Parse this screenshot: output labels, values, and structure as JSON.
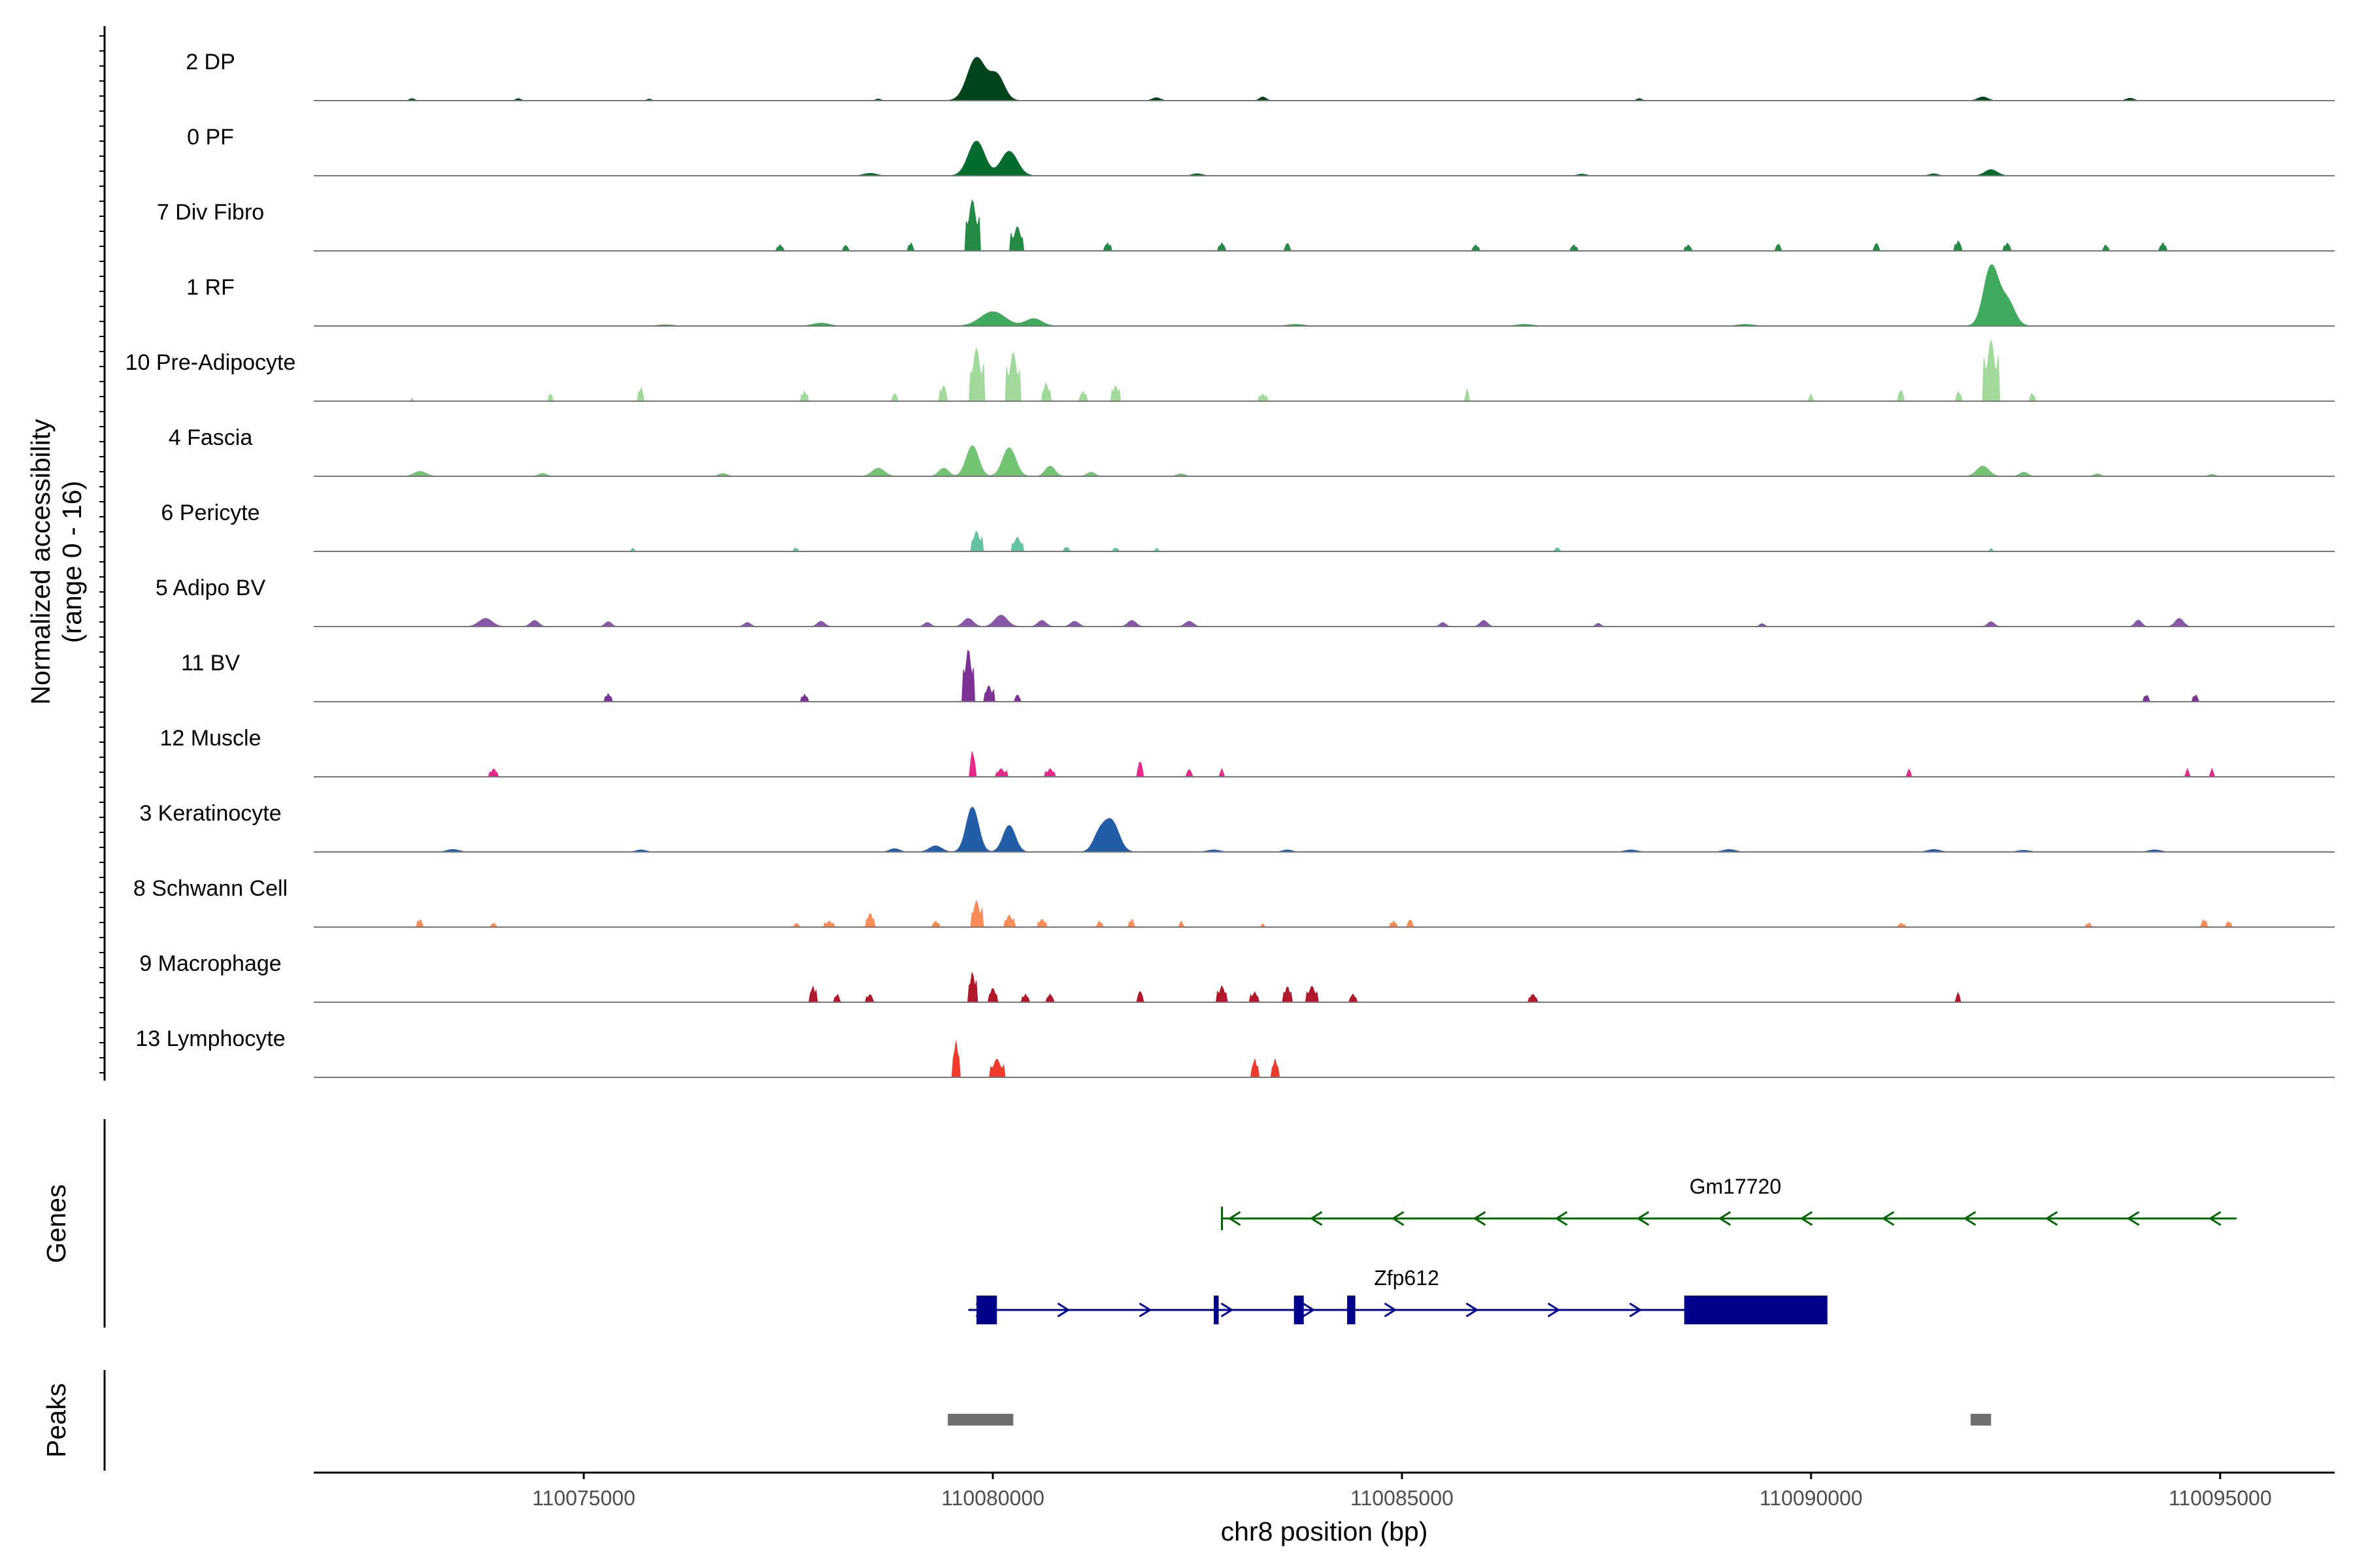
{
  "chart_data": {
    "type": "area",
    "title": "",
    "xlabel": "chr8 position (bp)",
    "ylabel": "Normalized accessibility",
    "ylabel_sub": "(range 0 - 16)",
    "xlim": [
      110071700,
      110096400
    ],
    "ylim": [
      0,
      16
    ],
    "xticks": [
      110075000,
      110080000,
      110085000,
      110090000,
      110095000
    ],
    "xtick_labels": [
      "110075000",
      "110080000",
      "110085000",
      "110090000",
      "110095000"
    ],
    "tracks": [
      {
        "name": "2 DP",
        "color": "#00441b",
        "style": "smooth",
        "peaks": [
          [
            110079800,
            10.5,
            220
          ],
          [
            110080050,
            6.0,
            180
          ],
          [
            110072900,
            0.5,
            60
          ],
          [
            110074200,
            0.5,
            60
          ],
          [
            110075800,
            0.4,
            50
          ],
          [
            110078600,
            0.4,
            60
          ],
          [
            110082000,
            0.7,
            100
          ],
          [
            110083300,
            0.9,
            80
          ],
          [
            110087900,
            0.5,
            60
          ],
          [
            110092100,
            0.9,
            120
          ],
          [
            110093900,
            0.6,
            90
          ]
        ]
      },
      {
        "name": "0 PF",
        "color": "#006d2c",
        "style": "smooth",
        "peaks": [
          [
            110079800,
            8.5,
            200
          ],
          [
            110080200,
            6.0,
            200
          ],
          [
            110078500,
            0.6,
            150
          ],
          [
            110082500,
            0.5,
            120
          ],
          [
            110087200,
            0.4,
            100
          ],
          [
            110091500,
            0.5,
            100
          ],
          [
            110092200,
            1.5,
            150
          ]
        ]
      },
      {
        "name": "7 Div Fibro",
        "color": "#238b45",
        "style": "blocky",
        "peaks": [
          [
            110079750,
            12.5,
            180
          ],
          [
            110080300,
            6.0,
            160
          ],
          [
            110077400,
            1.5,
            90
          ],
          [
            110078200,
            1.5,
            70
          ],
          [
            110079000,
            2.0,
            70
          ],
          [
            110081400,
            2.0,
            80
          ],
          [
            110082800,
            2.0,
            90
          ],
          [
            110083600,
            2.0,
            80
          ],
          [
            110085900,
            1.5,
            90
          ],
          [
            110087100,
            1.5,
            90
          ],
          [
            110088500,
            1.5,
            90
          ],
          [
            110089600,
            1.8,
            80
          ],
          [
            110090800,
            2.0,
            80
          ],
          [
            110091800,
            2.5,
            90
          ],
          [
            110092400,
            2.0,
            90
          ],
          [
            110093600,
            1.5,
            80
          ],
          [
            110094300,
            2.0,
            90
          ]
        ]
      },
      {
        "name": "1 RF",
        "color": "#41ab5d",
        "style": "smooth",
        "peaks": [
          [
            110092200,
            14.5,
            180
          ],
          [
            110092400,
            6.0,
            180
          ],
          [
            110080000,
            3.5,
            300
          ],
          [
            110080500,
            1.8,
            200
          ],
          [
            110077900,
            0.7,
            200
          ],
          [
            110083700,
            0.4,
            200
          ],
          [
            110086500,
            0.4,
            200
          ],
          [
            110089200,
            0.4,
            200
          ],
          [
            110076000,
            0.3,
            200
          ]
        ]
      },
      {
        "name": "10 Pre-Adipocyte",
        "color": "#a1d99b",
        "style": "blocky",
        "peaks": [
          [
            110079800,
            13.0,
            180
          ],
          [
            110080250,
            12.0,
            170
          ],
          [
            110079400,
            4.0,
            90
          ],
          [
            110080650,
            4.5,
            110
          ],
          [
            110081100,
            2.5,
            80
          ],
          [
            110081500,
            4.0,
            90
          ],
          [
            110083300,
            1.8,
            90
          ],
          [
            110074600,
            2.0,
            50
          ],
          [
            110075700,
            3.5,
            70
          ],
          [
            110077700,
            2.5,
            80
          ],
          [
            110078800,
            2.0,
            80
          ],
          [
            110085800,
            3.0,
            60
          ],
          [
            110090000,
            1.8,
            60
          ],
          [
            110091100,
            3.0,
            70
          ],
          [
            110091800,
            2.5,
            70
          ],
          [
            110092200,
            15.0,
            180
          ],
          [
            110092700,
            2.0,
            70
          ],
          [
            110072900,
            0.8,
            30
          ]
        ]
      },
      {
        "name": "4 Fascia",
        "color": "#74c476",
        "style": "smooth",
        "peaks": [
          [
            110079750,
            7.5,
            150
          ],
          [
            110080200,
            7.0,
            160
          ],
          [
            110079400,
            2.0,
            120
          ],
          [
            110080700,
            2.5,
            120
          ],
          [
            110078600,
            2.0,
            150
          ],
          [
            110073000,
            1.2,
            150
          ],
          [
            110074500,
            0.7,
            100
          ],
          [
            110076700,
            0.7,
            100
          ],
          [
            110081200,
            1.0,
            100
          ],
          [
            110082300,
            0.6,
            100
          ],
          [
            110092100,
            2.5,
            150
          ],
          [
            110092600,
            1.0,
            100
          ],
          [
            110093500,
            0.6,
            80
          ],
          [
            110094900,
            0.5,
            80
          ]
        ]
      },
      {
        "name": "6 Pericyte",
        "color": "#66c2a4",
        "style": "blocky",
        "peaks": [
          [
            110079800,
            5.0,
            140
          ],
          [
            110080300,
            3.5,
            150
          ],
          [
            110075600,
            0.8,
            60
          ],
          [
            110077600,
            1.0,
            50
          ],
          [
            110080900,
            1.2,
            60
          ],
          [
            110081500,
            1.0,
            60
          ],
          [
            110082000,
            0.8,
            50
          ],
          [
            110086900,
            1.0,
            80
          ],
          [
            110092200,
            0.7,
            50
          ]
        ]
      },
      {
        "name": "5 Adipo BV",
        "color": "#8856a7",
        "style": "smooth",
        "peaks": [
          [
            110073800,
            2.0,
            160
          ],
          [
            110074400,
            1.5,
            100
          ],
          [
            110075300,
            1.2,
            80
          ],
          [
            110077000,
            1.0,
            80
          ],
          [
            110077900,
            1.3,
            90
          ],
          [
            110079200,
            1.0,
            80
          ],
          [
            110079700,
            2.0,
            120
          ],
          [
            110080100,
            2.8,
            150
          ],
          [
            110080600,
            1.5,
            100
          ],
          [
            110081000,
            1.3,
            100
          ],
          [
            110081700,
            1.5,
            100
          ],
          [
            110082400,
            1.3,
            100
          ],
          [
            110085500,
            1.0,
            70
          ],
          [
            110086000,
            1.5,
            90
          ],
          [
            110087400,
            0.8,
            60
          ],
          [
            110089400,
            0.7,
            60
          ],
          [
            110092200,
            1.2,
            80
          ],
          [
            110094000,
            1.6,
            80
          ],
          [
            110094500,
            2.0,
            100
          ]
        ]
      },
      {
        "name": "11 BV",
        "color": "#7b3294",
        "style": "blocky",
        "peaks": [
          [
            110079700,
            13.0,
            140
          ],
          [
            110079950,
            4.0,
            120
          ],
          [
            110080300,
            1.8,
            80
          ],
          [
            110075300,
            2.0,
            80
          ],
          [
            110077700,
            1.8,
            80
          ],
          [
            110094100,
            1.8,
            60
          ],
          [
            110094700,
            1.8,
            60
          ]
        ]
      },
      {
        "name": "12 Muscle",
        "color": "#e7298a",
        "style": "blocky",
        "peaks": [
          [
            110079750,
            6.5,
            80
          ],
          [
            110080100,
            2.0,
            140
          ],
          [
            110080700,
            2.0,
            120
          ],
          [
            110073900,
            2.0,
            110
          ],
          [
            110081800,
            4.0,
            80
          ],
          [
            110082400,
            2.0,
            70
          ],
          [
            110082800,
            2.0,
            60
          ],
          [
            110091200,
            2.0,
            60
          ],
          [
            110094600,
            2.0,
            60
          ],
          [
            110094900,
            2.0,
            60
          ]
        ]
      },
      {
        "name": "3 Keratinocyte",
        "color": "#225ea8",
        "style": "smooth",
        "peaks": [
          [
            110079750,
            11.0,
            150
          ],
          [
            110080200,
            6.5,
            150
          ],
          [
            110081450,
            7.5,
            180
          ],
          [
            110081300,
            4.0,
            150
          ],
          [
            110079300,
            1.5,
            150
          ],
          [
            110078800,
            0.8,
            120
          ],
          [
            110073400,
            0.6,
            150
          ],
          [
            110075700,
            0.5,
            120
          ],
          [
            110082700,
            0.5,
            150
          ],
          [
            110083600,
            0.5,
            120
          ],
          [
            110087800,
            0.5,
            150
          ],
          [
            110089000,
            0.6,
            150
          ],
          [
            110091500,
            0.6,
            150
          ],
          [
            110092600,
            0.4,
            150
          ],
          [
            110094200,
            0.5,
            150
          ]
        ]
      },
      {
        "name": "8 Schwann Cell",
        "color": "#fc8d59",
        "style": "blocky",
        "peaks": [
          [
            110079800,
            6.5,
            140
          ],
          [
            110080200,
            3.0,
            120
          ],
          [
            110080600,
            2.0,
            100
          ],
          [
            110078500,
            3.5,
            110
          ],
          [
            110078000,
            1.5,
            110
          ],
          [
            110077600,
            1.0,
            80
          ],
          [
            110079300,
            1.5,
            90
          ],
          [
            110081300,
            1.5,
            70
          ],
          [
            110081700,
            2.0,
            70
          ],
          [
            110082300,
            1.5,
            60
          ],
          [
            110083300,
            1.0,
            50
          ],
          [
            110084900,
            1.5,
            80
          ],
          [
            110085100,
            2.0,
            70
          ],
          [
            110073000,
            2.0,
            60
          ],
          [
            110073900,
            1.0,
            80
          ],
          [
            110091100,
            1.0,
            90
          ],
          [
            110093400,
            1.0,
            70
          ],
          [
            110094800,
            2.0,
            60
          ],
          [
            110095100,
            1.5,
            60
          ]
        ]
      },
      {
        "name": "9 Macrophage",
        "color": "#b2182b",
        "style": "blocky",
        "peaks": [
          [
            110079750,
            7.5,
            100
          ],
          [
            110080000,
            3.5,
            120
          ],
          [
            110080400,
            2.0,
            80
          ],
          [
            110080700,
            2.0,
            100
          ],
          [
            110077800,
            4.0,
            80
          ],
          [
            110078100,
            2.0,
            70
          ],
          [
            110078500,
            2.0,
            90
          ],
          [
            110081800,
            3.0,
            70
          ],
          [
            110082800,
            4.0,
            120
          ],
          [
            110083200,
            2.5,
            100
          ],
          [
            110083600,
            4.0,
            100
          ],
          [
            110083900,
            4.0,
            140
          ],
          [
            110084400,
            2.0,
            100
          ],
          [
            110086600,
            2.0,
            120
          ],
          [
            110091800,
            2.5,
            60
          ]
        ]
      },
      {
        "name": "13 Lymphocyte",
        "color": "#ef3b2c",
        "style": "blocky",
        "peaks": [
          [
            110079550,
            9.0,
            90
          ],
          [
            110080050,
            4.5,
            180
          ],
          [
            110083200,
            4.5,
            90
          ],
          [
            110083450,
            4.5,
            90
          ]
        ]
      }
    ],
    "genes": [
      {
        "name": "Gm17720",
        "color": "#006400",
        "strand": "-",
        "start": 110082800,
        "end": 110095200,
        "exons": []
      },
      {
        "name": "Zfp612",
        "color": "#00008b",
        "strand": "+",
        "start": 110079700,
        "end": 110090200,
        "exons": [
          [
            110079800,
            110080050
          ],
          [
            110082700,
            110082760
          ],
          [
            110083680,
            110083800
          ],
          [
            110084330,
            110084430
          ],
          [
            110088450,
            110090200
          ]
        ]
      }
    ],
    "peaks": [
      [
        110079450,
        110080250
      ],
      [
        110091950,
        110092200
      ]
    ],
    "panel_labels": {
      "genes": "Genes",
      "peaks": "Peaks"
    }
  }
}
